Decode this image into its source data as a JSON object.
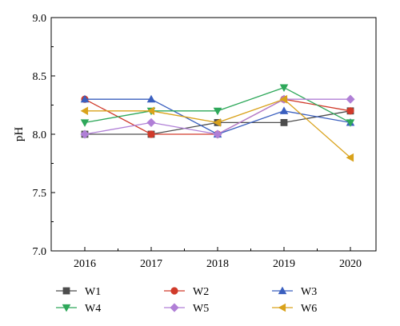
{
  "chart_data": {
    "type": "line",
    "title": "",
    "xlabel": "",
    "ylabel": "pH",
    "x": [
      "2016",
      "2017",
      "2018",
      "2019",
      "2020"
    ],
    "yticks": [
      "7.0",
      "7.5",
      "8.0",
      "8.5",
      "9.0"
    ],
    "ylim": [
      7.0,
      9.0
    ],
    "grid": false,
    "legend_position": "bottom",
    "series": [
      {
        "name": "W1",
        "color": "#4d4d4d",
        "marker": "square",
        "values": [
          8.0,
          8.0,
          8.1,
          8.1,
          8.2
        ]
      },
      {
        "name": "W2",
        "color": "#d03a2a",
        "marker": "circle",
        "values": [
          8.3,
          8.0,
          8.0,
          8.3,
          8.2
        ]
      },
      {
        "name": "W3",
        "color": "#3a5fbf",
        "marker": "triangle-up",
        "values": [
          8.3,
          8.3,
          8.0,
          8.2,
          8.1
        ]
      },
      {
        "name": "W4",
        "color": "#2ea85a",
        "marker": "triangle-down",
        "values": [
          8.1,
          8.2,
          8.2,
          8.4,
          8.1
        ]
      },
      {
        "name": "W5",
        "color": "#b07fd6",
        "marker": "diamond",
        "values": [
          8.0,
          8.1,
          8.0,
          8.3,
          8.3
        ]
      },
      {
        "name": "W6",
        "color": "#d9a21b",
        "marker": "triangle-left",
        "values": [
          8.2,
          8.2,
          8.1,
          8.3,
          7.8
        ]
      }
    ]
  }
}
